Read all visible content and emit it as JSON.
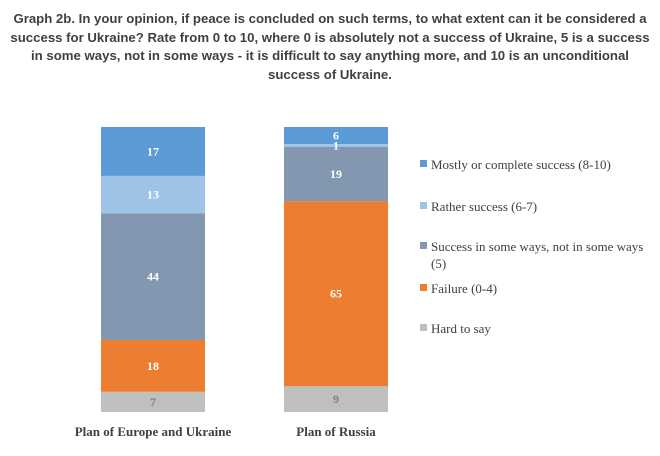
{
  "title": "Graph 2b. In your opinion, if peace is concluded on such terms, to what extent can it be considered a success for Ukraine? Rate from 0 to 10, where 0 is absolutely not a success of Ukraine, 5 is a success in some ways, not in some ways - it is difficult to say anything more, and 10 is an unconditional success of Ukraine.",
  "chart_data": {
    "type": "bar",
    "stacked": true,
    "percent": true,
    "categories": [
      "Plan of Europe and Ukraine",
      "Plan of Russia"
    ],
    "series": [
      {
        "name": "Mostly or complete success (8-10)",
        "color": "#5b9bd5",
        "values": [
          17,
          6
        ]
      },
      {
        "name": "Rather success (6-7)",
        "color": "#9dc3e6",
        "values": [
          13,
          1
        ]
      },
      {
        "name": "Success in some ways, not in some ways (5)",
        "color": "#8497b0",
        "values": [
          44,
          19
        ]
      },
      {
        "name": "Failure (0-4)",
        "color": "#ed7d31",
        "values": [
          18,
          65
        ]
      },
      {
        "name": "Hard to say",
        "color": "#bfbfbf",
        "values": [
          7,
          9
        ]
      }
    ],
    "label_colors": [
      "#ffffff",
      "#ffffff",
      "#ffffff",
      "#ffffff",
      "#7f7f7f"
    ],
    "legend_position": "right",
    "ylim": [
      0,
      100
    ]
  }
}
